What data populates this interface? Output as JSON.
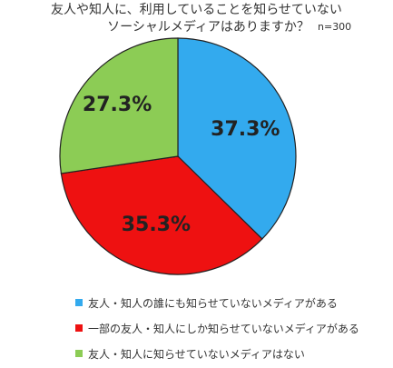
{
  "chart_data": {
    "type": "pie",
    "title_line1": "友人や知人に、利用していることを知らせていない",
    "title_line2": "ソーシャルメディアはありますか？",
    "note": "n=300",
    "slices": [
      {
        "label": "友人・知人の誰にも知らせていないメディアがある",
        "value": 37.3,
        "display": "37.3%",
        "color": "#33aaee"
      },
      {
        "label": "一部の友人・知人にしか知らせていないメディアがある",
        "value": 35.3,
        "display": "35.3%",
        "color": "#ee1111"
      },
      {
        "label": "友人・知人に知らせていないメディアはない",
        "value": 27.3,
        "display": "27.3%",
        "color": "#8ccc55"
      }
    ]
  }
}
